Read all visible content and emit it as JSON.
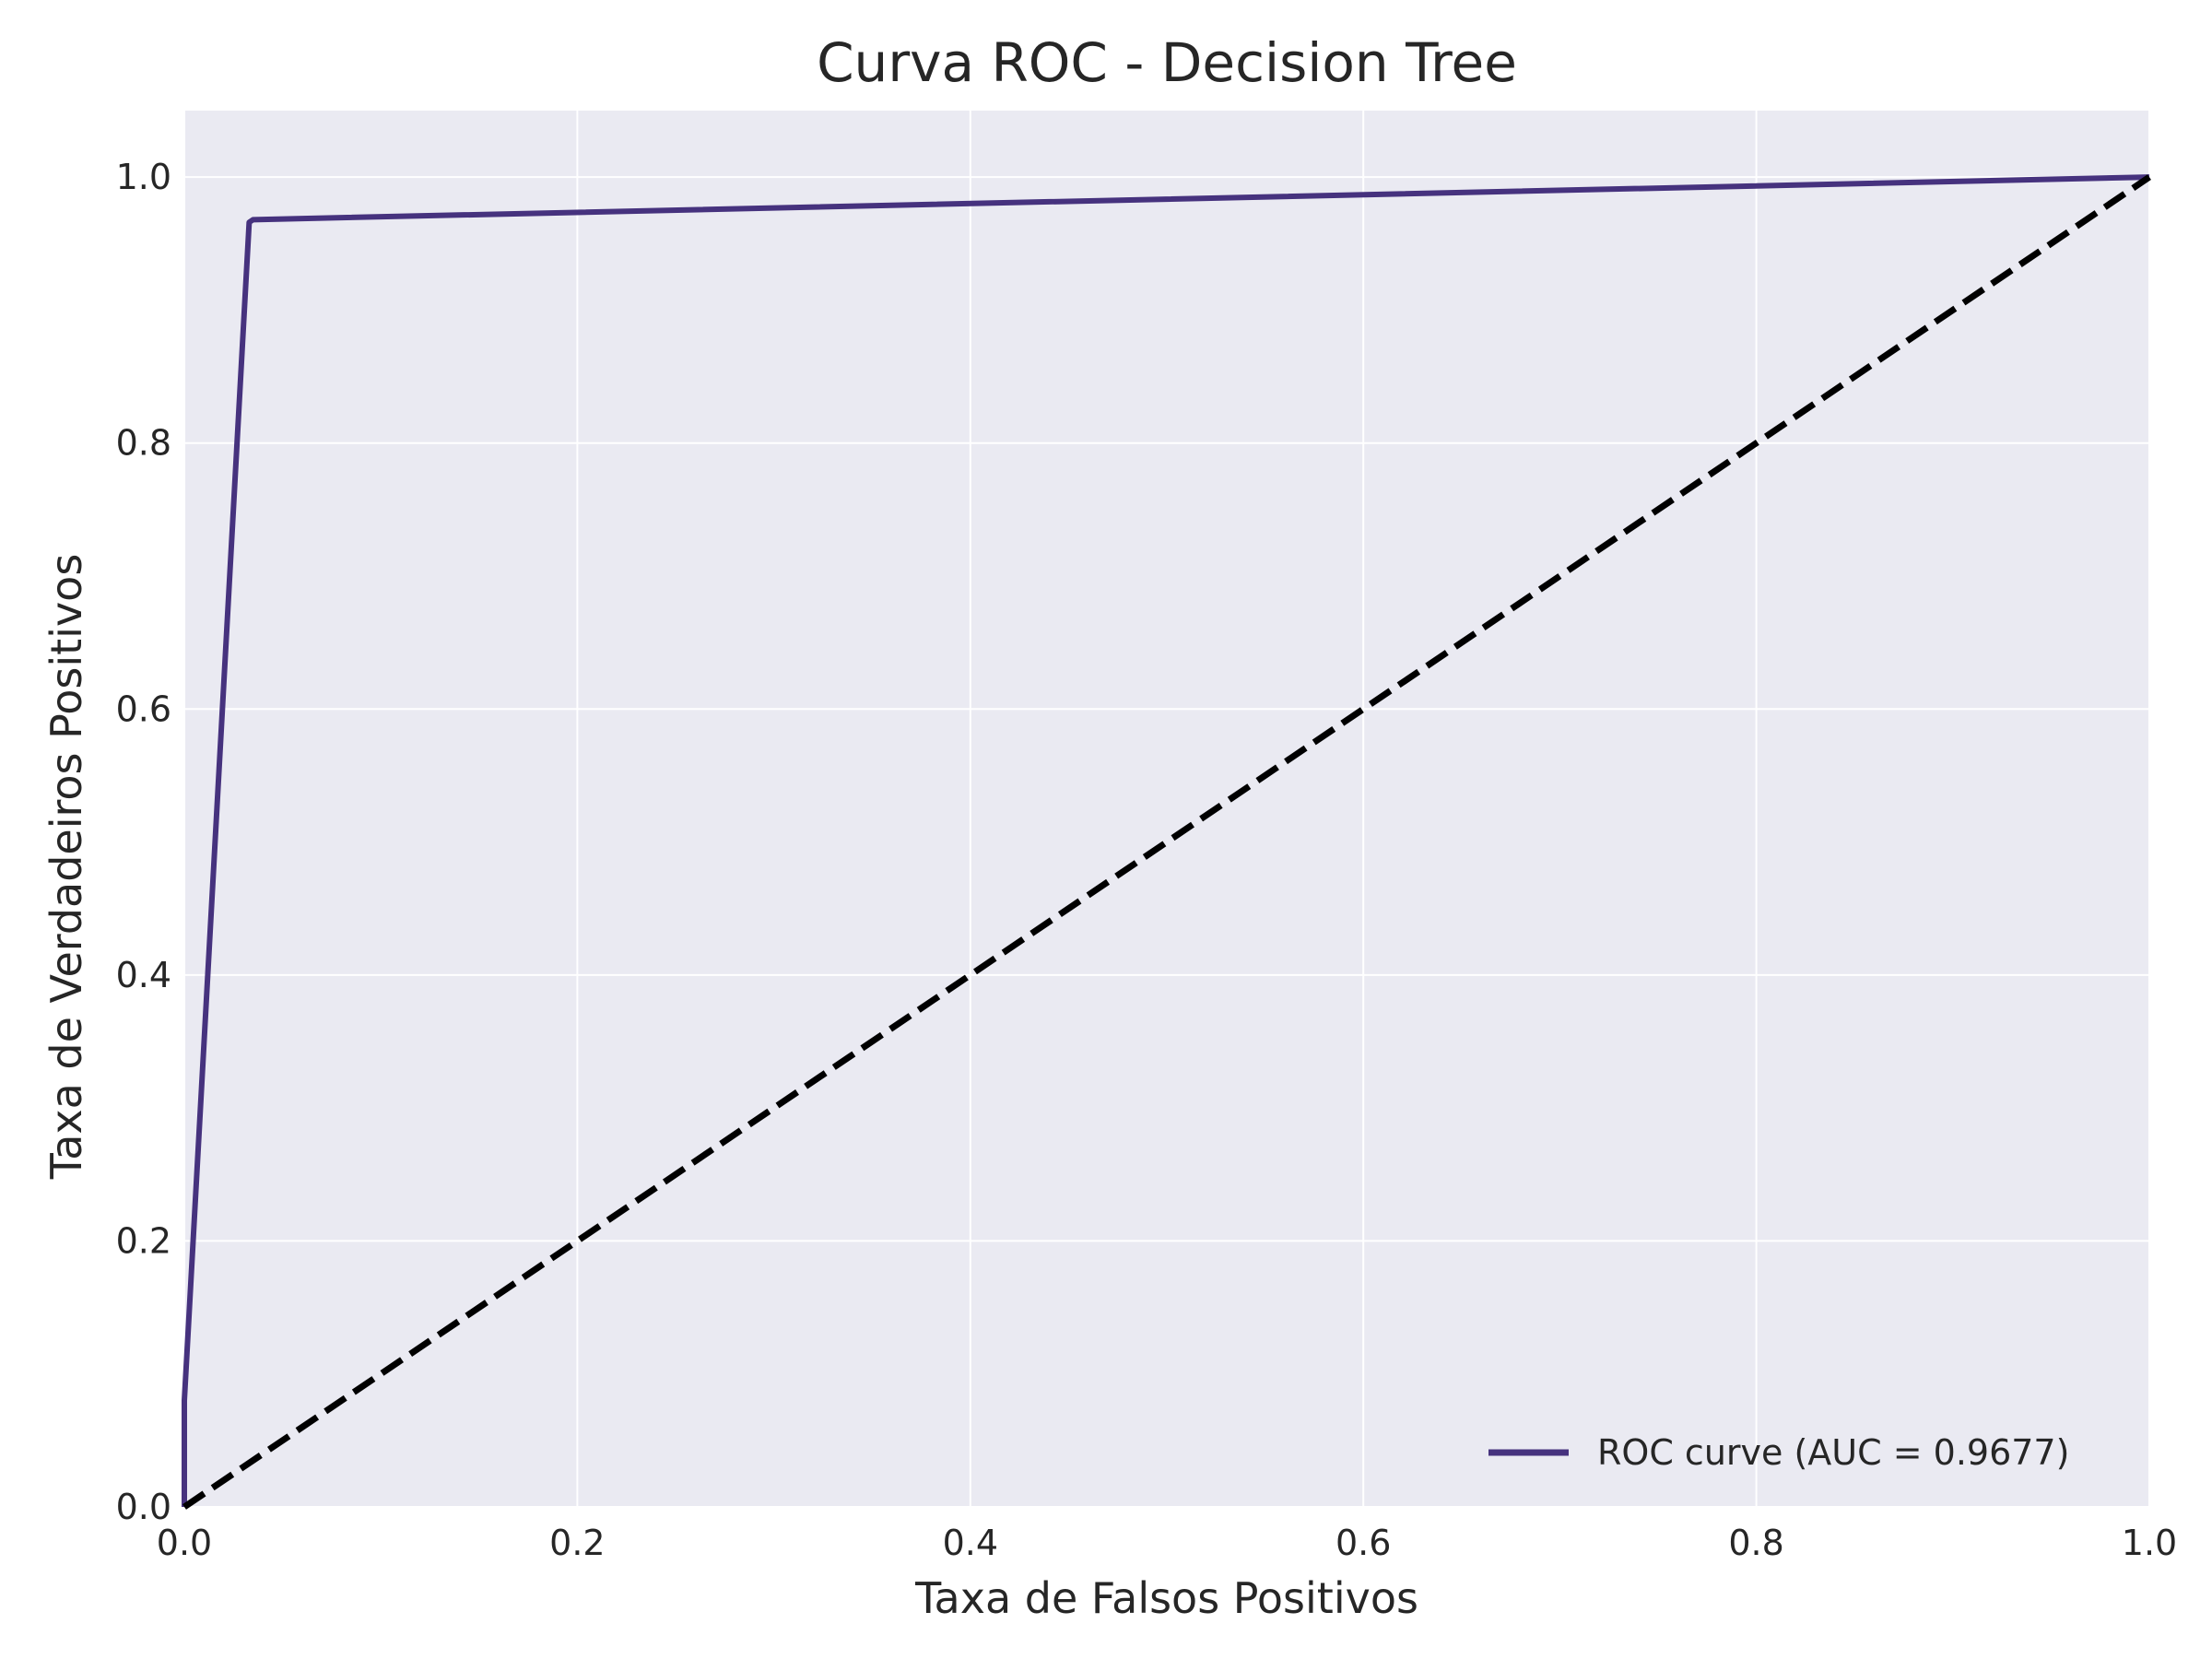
{
  "chart_data": {
    "type": "line",
    "title": "Curva ROC - Decision Tree",
    "xlabel": "Taxa de Falsos Positivos",
    "ylabel": "Taxa de Verdadeiros Positivos",
    "xlim": [
      0.0,
      1.0
    ],
    "ylim": [
      0.0,
      1.05
    ],
    "xticks": [
      "0.0",
      "0.2",
      "0.4",
      "0.6",
      "0.8",
      "1.0"
    ],
    "yticks": [
      "0.0",
      "0.2",
      "0.4",
      "0.6",
      "0.8",
      "1.0"
    ],
    "grid": true,
    "legend_position": "lower-right",
    "series": [
      {
        "name": "ROC curve (AUC = 0.9677)",
        "color": "#46327e",
        "style": "solid",
        "x": [
          0.0,
          0.0,
          0.033,
          0.035,
          1.0
        ],
        "y": [
          0.0,
          0.08,
          0.966,
          0.968,
          1.0
        ]
      },
      {
        "color": "#000000",
        "style": "dashed",
        "x": [
          0.0,
          1.0
        ],
        "y": [
          0.0,
          1.0
        ]
      }
    ],
    "colors": {
      "plot_background": "#eaeaf2",
      "grid": "#ffffff",
      "text": "#262626"
    }
  }
}
